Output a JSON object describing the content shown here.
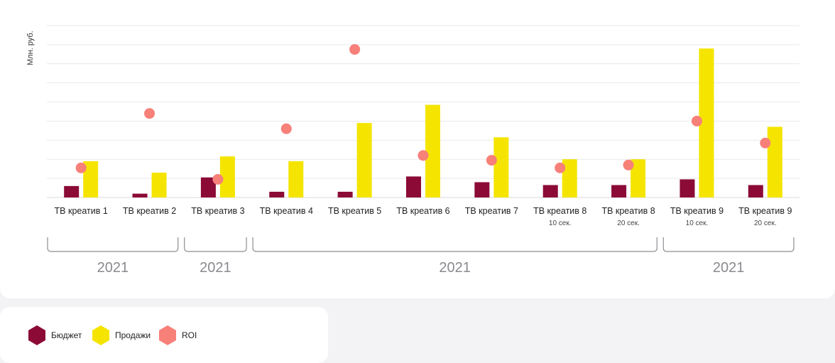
{
  "chart_data": {
    "type": "bar",
    "ylabel": "Млн. руб.",
    "categories": [
      {
        "name": "ТВ креатив 1",
        "sub": ""
      },
      {
        "name": "ТВ креатив 2",
        "sub": ""
      },
      {
        "name": "ТВ креатив 3",
        "sub": ""
      },
      {
        "name": "ТВ креатив 4",
        "sub": ""
      },
      {
        "name": "ТВ креатив 5",
        "sub": ""
      },
      {
        "name": "ТВ креатив 6",
        "sub": ""
      },
      {
        "name": "ТВ креатив 7",
        "sub": ""
      },
      {
        "name": "ТВ креатив 8",
        "sub": "10 сек."
      },
      {
        "name": "ТВ креатив 8",
        "sub": "20 сек."
      },
      {
        "name": "ТВ креатив 9",
        "sub": "10 сек."
      },
      {
        "name": "ТВ креатив 9",
        "sub": "20 сек."
      }
    ],
    "ylim": [
      0,
      9
    ],
    "grid": true,
    "series": [
      {
        "name": "Бюджет",
        "color": "#8b0a36",
        "kind": "bar",
        "values": [
          0.6,
          0.2,
          1.05,
          0.3,
          0.3,
          1.1,
          0.8,
          0.65,
          0.65,
          0.95,
          0.65
        ]
      },
      {
        "name": "Продажи",
        "color": "#f5e400",
        "kind": "bar",
        "values": [
          1.9,
          1.3,
          2.15,
          1.9,
          3.9,
          4.85,
          3.15,
          2.0,
          2.0,
          7.8,
          3.7
        ]
      },
      {
        "name": "ROI",
        "color": "#f78079",
        "kind": "dot",
        "values": [
          1.55,
          4.4,
          0.95,
          3.6,
          7.75,
          2.2,
          1.95,
          1.55,
          1.7,
          4.0,
          2.85
        ]
      }
    ],
    "groups": [
      {
        "label": "2021",
        "from": 0,
        "to": 1
      },
      {
        "label": "2021",
        "from": 2,
        "to": 2
      },
      {
        "label": "2021",
        "from": 3,
        "to": 8
      },
      {
        "label": "2021",
        "from": 9,
        "to": 10
      }
    ]
  },
  "legend": [
    {
      "label": "Бюджет",
      "color": "#8b0a36"
    },
    {
      "label": "Продажи",
      "color": "#f5e400"
    },
    {
      "label": "ROI",
      "color": "#f78079"
    }
  ]
}
